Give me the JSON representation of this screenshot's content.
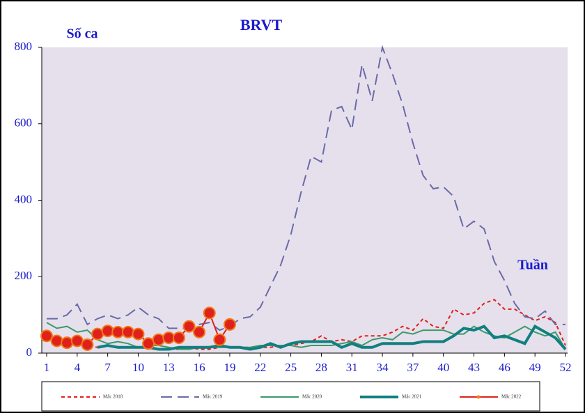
{
  "chart_data": {
    "type": "line",
    "title": "BRVT",
    "ylabel": "Số ca",
    "xlabel": "Tuần",
    "x": [
      1,
      2,
      3,
      4,
      5,
      6,
      7,
      8,
      9,
      10,
      11,
      12,
      13,
      14,
      15,
      16,
      17,
      18,
      19,
      20,
      21,
      22,
      23,
      24,
      25,
      26,
      27,
      28,
      29,
      30,
      31,
      32,
      33,
      34,
      35,
      36,
      37,
      38,
      39,
      40,
      41,
      42,
      43,
      44,
      45,
      46,
      47,
      48,
      49,
      50,
      51,
      52
    ],
    "xlim": [
      1,
      52
    ],
    "xticks": [
      1,
      4,
      7,
      10,
      13,
      16,
      19,
      22,
      25,
      28,
      31,
      34,
      37,
      40,
      43,
      46,
      49,
      52
    ],
    "ylim": [
      0,
      800
    ],
    "yticks": [
      0,
      200,
      400,
      600,
      800
    ],
    "series": [
      {
        "name": "Mắc 2018",
        "color": "#e0201b",
        "style": "dashed",
        "width": 2,
        "values": [
          45,
          35,
          30,
          25,
          20,
          15,
          20,
          15,
          15,
          15,
          15,
          10,
          10,
          10,
          15,
          10,
          10,
          15,
          15,
          15,
          15,
          15,
          15,
          20,
          20,
          25,
          30,
          45,
          30,
          35,
          30,
          45,
          45,
          45,
          55,
          70,
          60,
          90,
          70,
          65,
          115,
          100,
          105,
          130,
          140,
          115,
          115,
          100,
          85,
          95,
          80,
          20
        ]
      },
      {
        "name": "Mắc 2019",
        "color": "#6a6aa8",
        "style": "long-dash",
        "width": 2,
        "values": [
          90,
          90,
          100,
          128,
          75,
          90,
          100,
          90,
          100,
          120,
          100,
          90,
          65,
          65,
          65,
          75,
          80,
          60,
          70,
          90,
          95,
          120,
          175,
          230,
          310,
          420,
          515,
          500,
          635,
          645,
          585,
          755,
          660,
          800,
          730,
          650,
          550,
          465,
          430,
          435,
          410,
          325,
          345,
          325,
          240,
          190,
          130,
          95,
          90,
          110,
          75,
          75
        ]
      },
      {
        "name": "Mắc 2020",
        "color": "#3a9a6a",
        "style": "solid",
        "width": 2,
        "values": [
          80,
          65,
          70,
          55,
          60,
          35,
          25,
          30,
          25,
          15,
          20,
          20,
          15,
          10,
          10,
          15,
          15,
          15,
          15,
          15,
          15,
          20,
          20,
          20,
          20,
          15,
          20,
          20,
          20,
          25,
          30,
          20,
          35,
          40,
          35,
          55,
          50,
          60,
          60,
          60,
          50,
          50,
          70,
          55,
          45,
          40,
          55,
          70,
          55,
          45,
          55,
          10
        ]
      },
      {
        "name": "Mắc 2021",
        "color": "#117f80",
        "style": "solid",
        "width": 4,
        "values": [
          null,
          null,
          null,
          null,
          null,
          15,
          20,
          15,
          15,
          15,
          15,
          10,
          10,
          15,
          15,
          15,
          15,
          20,
          15,
          15,
          10,
          15,
          25,
          15,
          25,
          30,
          30,
          30,
          30,
          15,
          25,
          15,
          15,
          25,
          25,
          25,
          25,
          30,
          30,
          30,
          45,
          65,
          60,
          70,
          40,
          45,
          35,
          25,
          70,
          55,
          40,
          10
        ]
      },
      {
        "name": "Mắc 2022",
        "color": "#e0201b",
        "style": "solid",
        "width": 2,
        "markers": true,
        "marker_color": "#f07a1a",
        "values": [
          45,
          32,
          27,
          32,
          22,
          50,
          58,
          55,
          55,
          50,
          25,
          35,
          40,
          40,
          70,
          55,
          105,
          35,
          75,
          null,
          null,
          null,
          null,
          null,
          null,
          null,
          null,
          null,
          null,
          null,
          null,
          null,
          null,
          null,
          null,
          null,
          null,
          null,
          null,
          null,
          null,
          null,
          null,
          null,
          null,
          null,
          null,
          null,
          null,
          null,
          null,
          null
        ]
      }
    ]
  }
}
